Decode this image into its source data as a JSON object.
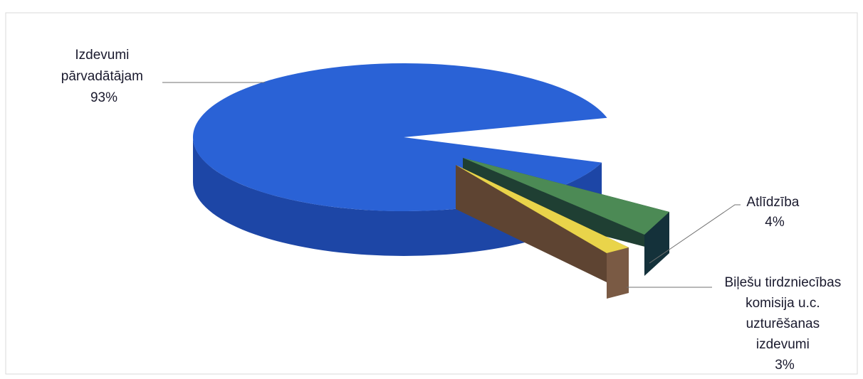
{
  "chart_data": {
    "type": "pie",
    "style": "3d-exploded",
    "slices": [
      {
        "label_lines": [
          "Izdevumi",
          "pārvadātājam"
        ],
        "value": 93,
        "value_text": "93%",
        "color": "#2a62d6",
        "side_color": "#1d46a6"
      },
      {
        "label_lines": [
          "Atlīdzība"
        ],
        "value": 4,
        "value_text": "4%",
        "color": "#4c8a55",
        "side_color": "#1f3f33"
      },
      {
        "label_lines": [
          "Biļešu tirdzniecības",
          "komisija u.c.",
          "uzturēšanas",
          "izdevumi"
        ],
        "value": 3,
        "value_text": "3%",
        "color": "#e9d44a",
        "side_color": "#5e4432"
      }
    ],
    "legend": "none",
    "title": ""
  }
}
